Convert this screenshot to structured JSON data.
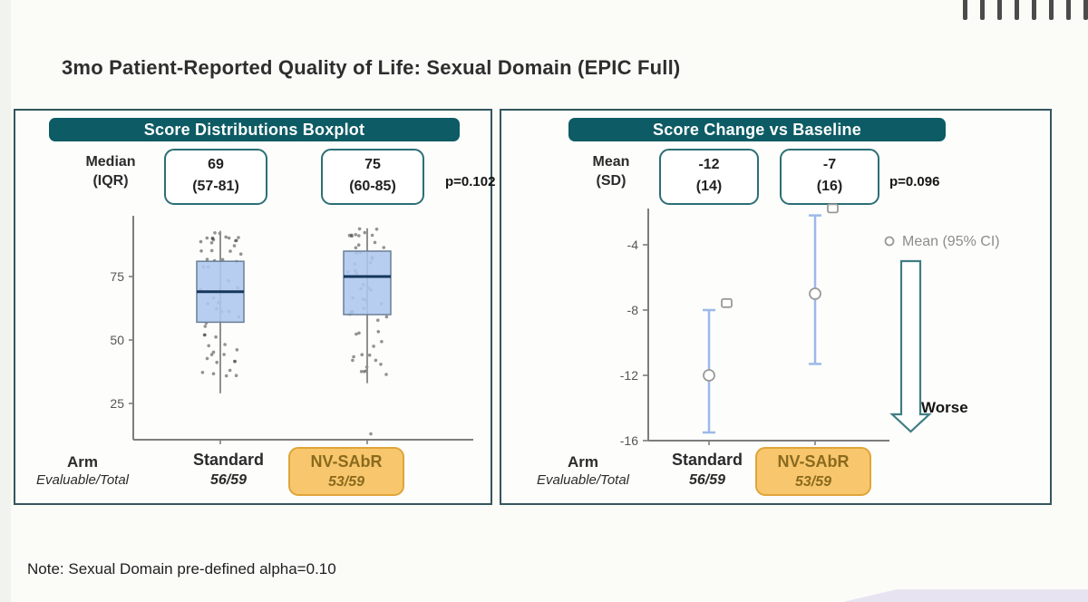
{
  "slide": {
    "title": "3mo Patient-Reported Quality of Life: Sexual Domain (EPIC Full)",
    "note": "Note: Sexual Domain pre-defined alpha=0.10"
  },
  "left_panel": {
    "header": "Score Distributions Boxplot",
    "stat_label": {
      "line1": "Median",
      "line2": "(IQR)"
    },
    "stat_boxes": [
      {
        "line1": "69",
        "line2": "(57-81)"
      },
      {
        "line1": "75",
        "line2": "(60-85)"
      }
    ],
    "p_value": "p=0.102",
    "arm_label": "Arm",
    "evaluable_label": "Evaluable/Total"
  },
  "right_panel": {
    "header": "Score Change vs Baseline",
    "stat_label": {
      "line1": "Mean",
      "line2": "(SD)"
    },
    "stat_boxes": [
      {
        "line1": "-12",
        "line2": "(14)"
      },
      {
        "line1": "-7",
        "line2": "(16)"
      }
    ],
    "p_value": "p=0.096",
    "arm_label": "Arm",
    "evaluable_label": "Evaluable/Total"
  },
  "chart_data": [
    {
      "type": "boxplot",
      "title": "Score Distributions Boxplot",
      "ylim": [
        0,
        100
      ],
      "yticks": [
        75,
        50,
        25
      ],
      "p_value": "p=0.102",
      "grid": false,
      "groups": [
        {
          "name": "Standard",
          "evaluable": "56/59",
          "n": 56,
          "median": 69,
          "q1": 57,
          "q3": 81,
          "whisker_low": 29,
          "whisker_high": 93,
          "outliers": [],
          "highlight": false
        },
        {
          "name": "NV-SAbR",
          "evaluable": "53/59",
          "n": 53,
          "median": 75,
          "q1": 60,
          "q3": 85,
          "whisker_low": 33,
          "whisker_high": 94,
          "outliers": [
            13
          ],
          "highlight": true
        }
      ]
    },
    {
      "type": "errorbar",
      "title": "Score Change vs Baseline",
      "legend": "Mean (95% CI)",
      "legend_position": "right",
      "annotation": "Worse",
      "ylim": [
        -16,
        0
      ],
      "yticks": [
        -4,
        -8,
        -12,
        -16
      ],
      "p_value": "p=0.096",
      "grid": false,
      "groups": [
        {
          "name": "Standard",
          "evaluable": "56/59",
          "mean": -12,
          "ci_low": -15.5,
          "ci_high": -8,
          "square_marker": -7.6,
          "highlight": false
        },
        {
          "name": "NV-SAbR",
          "evaluable": "53/59",
          "mean": -7,
          "ci_low": -11.3,
          "ci_high": -2.2,
          "square_marker": -1.8,
          "highlight": true
        }
      ]
    }
  ],
  "colors": {
    "header_teal": "#0d5b64",
    "panel_border": "#34565c",
    "box_fill": "#aec7ee",
    "median_line": "#16365c",
    "errorbar_blue": "#9cb9e9",
    "highlight_fill": "#f8c76d",
    "highlight_border": "#dfa53a",
    "marker_gray": "#8f8f8f",
    "footer_lavender": "#e7e3f0"
  }
}
